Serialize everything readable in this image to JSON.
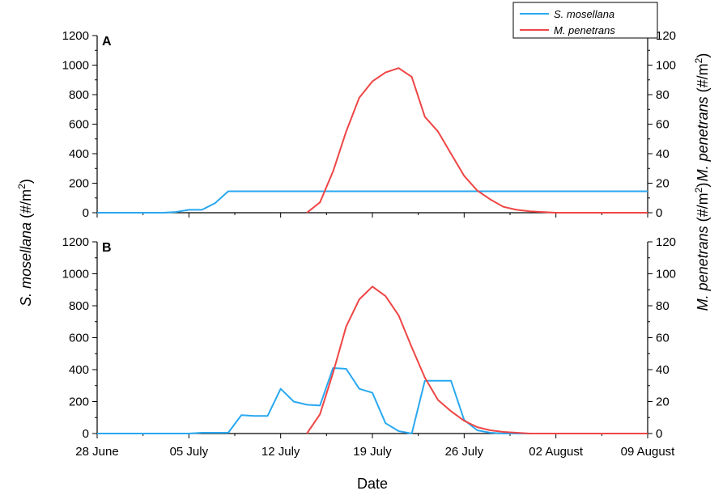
{
  "chart_data": {
    "type": "line",
    "xlabel": "Date",
    "ylabel_left": "S. mosellana (#/m²)",
    "ylabel_left_species": "S. mosellana",
    "ylabel_left_unit_prefix": " (#/m",
    "ylabel_left_unit_sup": "2",
    "ylabel_left_unit_suffix": ")",
    "ylabel_right_species": "M. penetrans",
    "ylabel_right_unit_prefix": " (#/m",
    "ylabel_right_unit_sup": "2",
    "ylabel_right_unit_suffix": ")",
    "x_ticks": [
      "28 June",
      "05 July",
      "12 July",
      "19 July",
      "26 July",
      "02 August",
      "09 August"
    ],
    "x_tick_days": [
      0,
      7,
      14,
      21,
      28,
      35,
      42
    ],
    "xlim_days": [
      0,
      42
    ],
    "ylim_left": [
      0,
      1200
    ],
    "ylim_right": [
      0,
      120
    ],
    "left_ticks": [
      0,
      200,
      400,
      600,
      800,
      1000,
      1200
    ],
    "right_ticks": [
      0,
      20,
      40,
      60,
      80,
      100,
      120
    ],
    "grid": false,
    "legend": {
      "placement": "top-right",
      "entries": [
        {
          "name": "S. mosellana",
          "color": "#29a8f0"
        },
        {
          "name": "M. penetrans",
          "color": "#ef4545"
        }
      ]
    },
    "colors": {
      "s_mosellana": "#29a8f0",
      "m_penetrans": "#ef4545",
      "highlight": "#1a1adf"
    },
    "panels": [
      {
        "label": "A",
        "series": [
          {
            "name": "S. mosellana",
            "axis": "left",
            "color": "#29a8f0",
            "x": [
              0,
              1,
              2,
              3,
              4,
              5,
              6,
              7,
              8,
              9,
              10,
              10.5,
              11,
              11.5,
              12,
              12.5,
              13,
              14,
              15,
              15.5,
              16,
              17,
              18,
              19,
              20,
              20.5,
              21,
              22,
              23,
              24,
              25,
              26,
              27,
              28,
              29,
              29.5,
              30,
              31,
              32,
              33,
              34,
              35,
              36,
              37,
              38,
              39,
              40,
              41,
              42
            ],
            "y": [
              0,
              0,
              0,
              0,
              0,
              0,
              5,
              20,
              20,
              65,
              145,
              145,
              145,
              145,
              145,
              145,
              145,
              145,
              145,
              145,
              145,
              145,
              145,
              145,
              145,
              145,
              145,
              145,
              145,
              145,
              145,
              145,
              145,
              145,
              145,
              145,
              145,
              145,
              145,
              145,
              145,
              145,
              145,
              145,
              145,
              145,
              145,
              145,
              145
            ]
          },
          {
            "name": "M. penetrans",
            "axis": "right",
            "color": "#ef4545",
            "x": [
              16,
              17,
              18,
              19,
              20,
              21,
              22,
              23,
              24,
              25,
              26,
              27,
              28,
              29,
              30,
              31,
              32,
              33,
              34,
              35,
              36,
              37,
              38,
              39,
              40,
              41,
              42
            ],
            "y": [
              0,
              7,
              28,
              55,
              78,
              89,
              95,
              98,
              92,
              65,
              55,
              40,
              25,
              15,
              9,
              4,
              2,
              1,
              0.5,
              0,
              0,
              0,
              0,
              0,
              0,
              0,
              0
            ]
          }
        ]
      },
      {
        "label": "B",
        "series": [
          {
            "name": "S. mosellana",
            "axis": "left",
            "color": "#29a8f0",
            "x": [
              0,
              1,
              2,
              3,
              4,
              5,
              6,
              7,
              8,
              9,
              10,
              11,
              12,
              13,
              14,
              15,
              16,
              17,
              18,
              19,
              20,
              21,
              22,
              23,
              24,
              25,
              26,
              27,
              28,
              29,
              30,
              31,
              32,
              33,
              34,
              35,
              36,
              37,
              38,
              39,
              40,
              41,
              42
            ],
            "y": [
              0,
              0,
              0,
              0,
              0,
              0,
              0,
              0,
              5,
              5,
              5,
              115,
              110,
              110,
              280,
              200,
              180,
              175,
              410,
              405,
              280,
              255,
              65,
              15,
              0,
              330,
              330,
              330,
              85,
              20,
              5,
              0,
              0,
              0,
              0,
              0,
              0,
              0,
              0,
              0,
              0,
              0,
              0
            ]
          },
          {
            "name": "M. penetrans",
            "axis": "right",
            "color": "#ef4545",
            "x": [
              16,
              17,
              18,
              19,
              20,
              21,
              22,
              23,
              24,
              25,
              26,
              27,
              28,
              29,
              30,
              31,
              32,
              33,
              34,
              35,
              36,
              37,
              38,
              39,
              40,
              41,
              42
            ],
            "y": [
              0,
              12,
              38,
              67,
              84,
              92,
              86,
              74,
              54,
              35,
              21,
              14,
              8,
              4,
              2,
              1,
              0.5,
              0,
              0,
              0,
              0,
              0,
              0,
              0,
              0,
              0,
              0
            ]
          }
        ]
      }
    ]
  }
}
